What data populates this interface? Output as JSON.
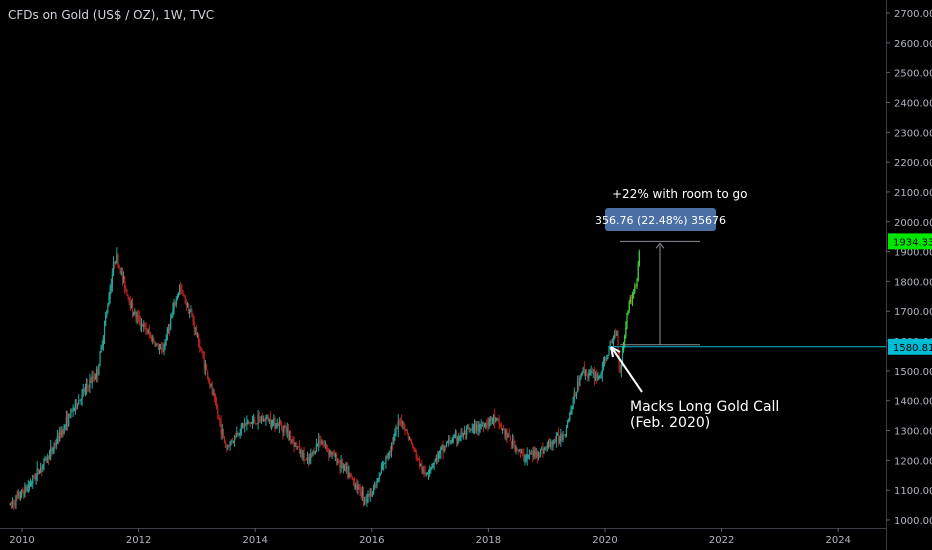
{
  "header": {
    "title": "CFDs on Gold (US$ / OZ), 1W, TVC"
  },
  "annotations": {
    "measure_note": "+22% with room to go",
    "measure_box": "356.76 (22.48%) 35676",
    "call_line1": "Macks Long Gold Call",
    "call_line2": "(Feb. 2020)"
  },
  "colors": {
    "background": "#000000",
    "up": "#26a69a",
    "up_bright": "#3fd43f",
    "down": "#b8231f",
    "last_price_label": "#00e700",
    "level_line": "#00bcd4",
    "measure_box": "#4a6fa5"
  },
  "chart_data": {
    "type": "candlestick",
    "x_label": "",
    "y_label": "",
    "x_ticks": [
      "2010",
      "2012",
      "2014",
      "2016",
      "2018",
      "2020",
      "2022",
      "2024"
    ],
    "y_ticks": [
      "1000.00",
      "1100.00",
      "1200.00",
      "1300.00",
      "1400.00",
      "1500.00",
      "1600.00",
      "1700.00",
      "1800.00",
      "1900.00",
      "2000.00",
      "2100.00",
      "2200.00",
      "2300.00",
      "2400.00",
      "2500.00",
      "2600.00",
      "2700.00"
    ],
    "y_range": [
      990,
      2740
    ],
    "x_range": [
      2009.8,
      2024.9
    ],
    "last_price": "1934.33",
    "level_price": "1580.81",
    "price_path": [
      [
        2009.8,
        1050
      ],
      [
        2010.1,
        1110
      ],
      [
        2010.5,
        1230
      ],
      [
        2010.9,
        1380
      ],
      [
        2011.3,
        1500
      ],
      [
        2011.6,
        1890
      ],
      [
        2011.9,
        1700
      ],
      [
        2012.4,
        1560
      ],
      [
        2012.7,
        1780
      ],
      [
        2012.9,
        1690
      ],
      [
        2013.3,
        1400
      ],
      [
        2013.5,
        1240
      ],
      [
        2013.8,
        1320
      ],
      [
        2014.2,
        1340
      ],
      [
        2014.5,
        1310
      ],
      [
        2014.9,
        1190
      ],
      [
        2015.1,
        1270
      ],
      [
        2015.5,
        1180
      ],
      [
        2015.9,
        1070
      ],
      [
        2016.1,
        1130
      ],
      [
        2016.5,
        1340
      ],
      [
        2016.9,
        1150
      ],
      [
        2017.3,
        1260
      ],
      [
        2017.7,
        1300
      ],
      [
        2018.1,
        1340
      ],
      [
        2018.6,
        1210
      ],
      [
        2018.9,
        1230
      ],
      [
        2019.3,
        1290
      ],
      [
        2019.6,
        1500
      ],
      [
        2019.9,
        1480
      ],
      [
        2020.2,
        1640
      ],
      [
        2020.25,
        1490
      ],
      [
        2020.4,
        1720
      ],
      [
        2020.55,
        1800
      ],
      [
        2020.6,
        1934
      ]
    ]
  }
}
